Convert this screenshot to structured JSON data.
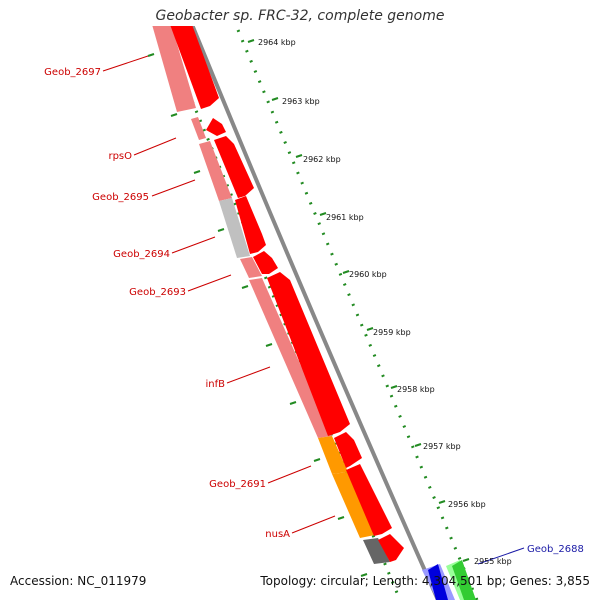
{
  "title": "Geobacter sp. FRC-32, complete genome",
  "footer": {
    "accession": "Accession: NC_011979",
    "summary": "Topology: circular; Length: 4,304,501 bp; Genes: 3,855"
  },
  "kbp_ticks": [
    {
      "label": "2964 kbp"
    },
    {
      "label": "2963 kbp"
    },
    {
      "label": "2962 kbp"
    },
    {
      "label": "2961 kbp"
    },
    {
      "label": "2960 kbp"
    },
    {
      "label": "2959 kbp"
    },
    {
      "label": "2958 kbp"
    },
    {
      "label": "2957 kbp"
    },
    {
      "label": "2956 kbp"
    },
    {
      "label": "2955 kbp"
    }
  ],
  "genes": [
    {
      "label": "Geob_2697",
      "color": "#ff0000"
    },
    {
      "label": "rpsO",
      "color": "#ff0000"
    },
    {
      "label": "Geob_2695",
      "color": "#ff0000"
    },
    {
      "label": "Geob_2694",
      "color": "#ff0000"
    },
    {
      "label": "Geob_2693",
      "color": "#ff0000"
    },
    {
      "label": "infB",
      "color": "#ff0000"
    },
    {
      "label": "Geob_2691",
      "color": "#ff0000"
    },
    {
      "label": "nusA",
      "color": "#ff0000"
    },
    {
      "label": "Geob_2688",
      "color": "#1a1aa6"
    }
  ],
  "colors": {
    "cds": "#ff0000",
    "cds_light": "#f08080",
    "gray": "#c0c0c0",
    "orange": "#ff9900",
    "dark_gray": "#666666",
    "blue": "#0000dd",
    "light_blue": "#9999ff",
    "green": "#33cc33",
    "light_green": "#99ff99",
    "tick_green": "#228b22",
    "backbone": "#888888"
  }
}
